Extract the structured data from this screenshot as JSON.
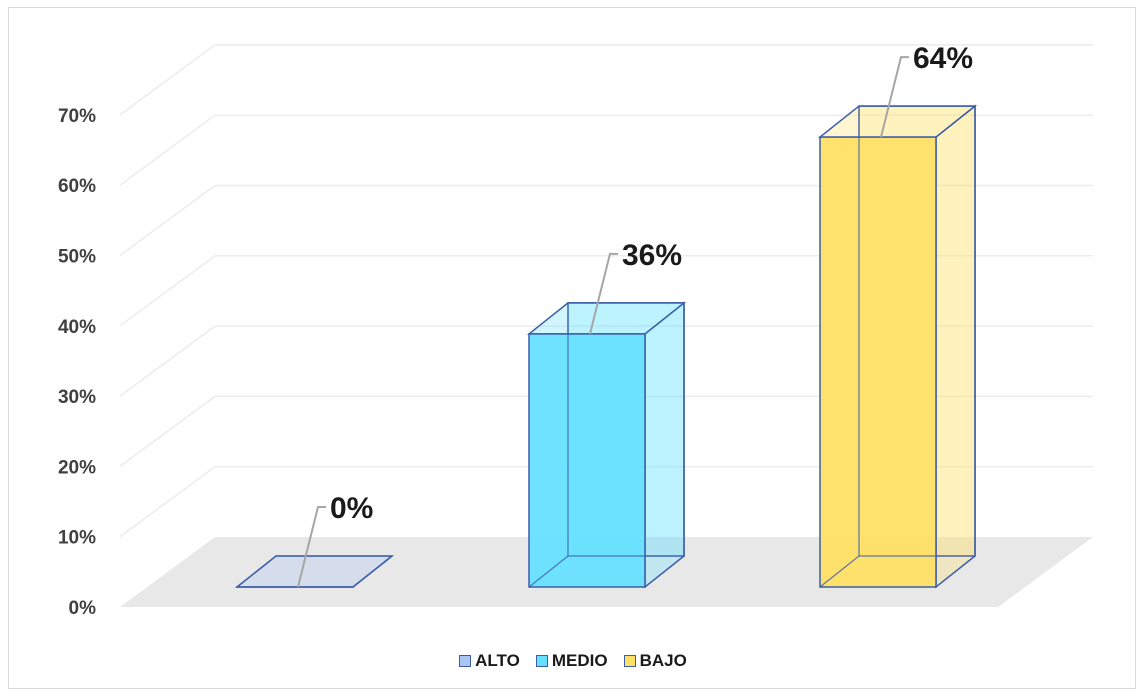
{
  "chart_data": {
    "type": "bar",
    "title": "",
    "xlabel": "",
    "ylabel": "",
    "categories": [
      "ALTO",
      "MEDIO",
      "BAJO"
    ],
    "values": [
      0,
      36,
      64
    ],
    "data_labels": [
      "0%",
      "36%",
      "64%"
    ],
    "ylim": [
      0,
      70
    ],
    "y_ticks": [
      "0%",
      "10%",
      "20%",
      "30%",
      "40%",
      "50%",
      "60%",
      "70%"
    ],
    "grid": true,
    "legend_position": "bottom",
    "colors": [
      "#a9c4f5",
      "#66e0ff",
      "#ffe066"
    ],
    "edge_color": "#3c5ea8"
  }
}
